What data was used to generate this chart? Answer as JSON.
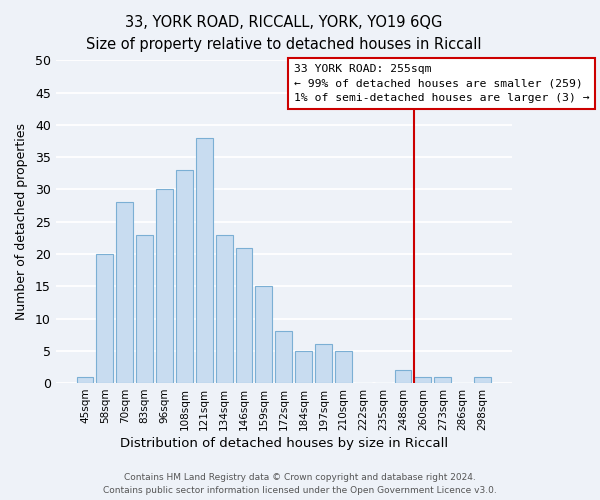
{
  "title": "33, YORK ROAD, RICCALL, YORK, YO19 6QG",
  "subtitle": "Size of property relative to detached houses in Riccall",
  "xlabel": "Distribution of detached houses by size in Riccall",
  "ylabel": "Number of detached properties",
  "bar_labels": [
    "45sqm",
    "58sqm",
    "70sqm",
    "83sqm",
    "96sqm",
    "108sqm",
    "121sqm",
    "134sqm",
    "146sqm",
    "159sqm",
    "172sqm",
    "184sqm",
    "197sqm",
    "210sqm",
    "222sqm",
    "235sqm",
    "248sqm",
    "260sqm",
    "273sqm",
    "286sqm",
    "298sqm"
  ],
  "bar_values": [
    1,
    20,
    28,
    23,
    30,
    33,
    38,
    23,
    21,
    15,
    8,
    5,
    6,
    5,
    0,
    0,
    2,
    1,
    1,
    0,
    1
  ],
  "bar_color": "#c8dcf0",
  "bar_edge_color": "#7bafd4",
  "vline_color": "#cc0000",
  "annotation_title": "33 YORK ROAD: 255sqm",
  "annotation_line1": "← 99% of detached houses are smaller (259)",
  "annotation_line2": "1% of semi-detached houses are larger (3) →",
  "annotation_box_color": "#ffffff",
  "annotation_box_edge_color": "#cc0000",
  "ylim": [
    0,
    50
  ],
  "yticks": [
    0,
    5,
    10,
    15,
    20,
    25,
    30,
    35,
    40,
    45,
    50
  ],
  "footer1": "Contains HM Land Registry data © Crown copyright and database right 2024.",
  "footer2": "Contains public sector information licensed under the Open Government Licence v3.0.",
  "background_color": "#eef2f8"
}
